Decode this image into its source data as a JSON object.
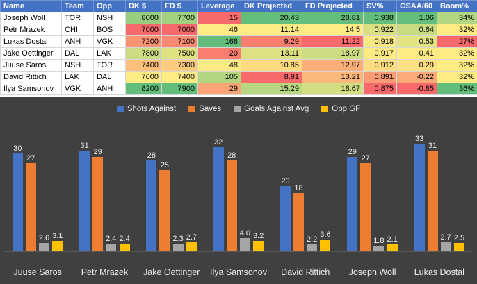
{
  "table": {
    "headers": [
      "Name",
      "Team",
      "Opp",
      "DK $",
      "FD $",
      "Leverage",
      "DK Projected",
      "FD Projected",
      "SV%",
      "GSAA/60",
      "Boom%"
    ],
    "rows": [
      [
        "Joseph Woll",
        "TOR",
        "NSH",
        "8000",
        "7700",
        "15",
        "20.43",
        "28.81",
        "0.938",
        "1.06",
        "34%"
      ],
      [
        "Petr Mrazek",
        "CHI",
        "BOS",
        "7000",
        "7000",
        "46",
        "11.14",
        "14.5",
        "0.922",
        "0.64",
        "32%"
      ],
      [
        "Lukas Dostal",
        "ANH",
        "VGK",
        "7200",
        "7100",
        "168",
        "9.29",
        "11.22",
        "0.918",
        "0.53",
        "27%"
      ],
      [
        "Jake Oettinger",
        "DAL",
        "LAK",
        "7800",
        "7500",
        "20",
        "13.11",
        "18.97",
        "0.917",
        "0.41",
        "32%"
      ],
      [
        "Juuse Saros",
        "NSH",
        "TOR",
        "7400",
        "7300",
        "48",
        "10.85",
        "12.97",
        "0.912",
        "0.29",
        "32%"
      ],
      [
        "David Rittich",
        "LAK",
        "DAL",
        "7600",
        "7400",
        "105",
        "8.91",
        "13.21",
        "0.891",
        "-0.22",
        "32%"
      ],
      [
        "Ilya Samsonov",
        "VGK",
        "ANH",
        "8200",
        "7900",
        "29",
        "15.29",
        "18.67",
        "0.875",
        "-0.85",
        "36%"
      ]
    ],
    "numeric_columns_start": 3,
    "header_bg": "#4472C4",
    "header_text_color": "#FFFFFF",
    "conditional_format": {
      "min_color": "#F8696B",
      "mid_color": "#FFEB84",
      "max_color": "#63BE7B"
    }
  },
  "chart_data": {
    "type": "bar",
    "title": "",
    "categories": [
      "Juuse Saros",
      "Petr Mrazek",
      "Jake Oettinger",
      "Ilya Samsonov",
      "David Rittich",
      "Joseph Woll",
      "Lukas Dostal"
    ],
    "series": [
      {
        "name": "Shots Against",
        "color": "#4472C4",
        "values": [
          30,
          31,
          28,
          32,
          20,
          29,
          33
        ],
        "labels": [
          "30",
          "31",
          "28",
          "32",
          "20",
          "29",
          "33"
        ]
      },
      {
        "name": "Saves",
        "color": "#ED7D31",
        "values": [
          27,
          29,
          25,
          28,
          18,
          27,
          31
        ],
        "labels": [
          "27",
          "29",
          "25",
          "28",
          "18",
          "27",
          "31"
        ]
      },
      {
        "name": "Goals Against Avg",
        "color": "#A5A5A5",
        "values": [
          2.6,
          2.4,
          2.3,
          4.0,
          2.2,
          1.8,
          2.7
        ],
        "labels": [
          "2.6",
          "2.4",
          "2.3",
          "4.0",
          "2.2",
          "1.8",
          "2.7"
        ]
      },
      {
        "name": "Opp GF",
        "color": "#FFC000",
        "values": [
          3.1,
          2.4,
          2.7,
          3.2,
          3.6,
          2.1,
          2.5
        ],
        "labels": [
          "3.1",
          "2.4",
          "2.7",
          "3.2",
          "3.6",
          "2.1",
          "2.5"
        ]
      }
    ],
    "ylim": [
      0,
      35
    ],
    "legend_position": "top",
    "grid": false,
    "data_labels": true,
    "background": "#404040",
    "text_color": "#EDEDED"
  }
}
